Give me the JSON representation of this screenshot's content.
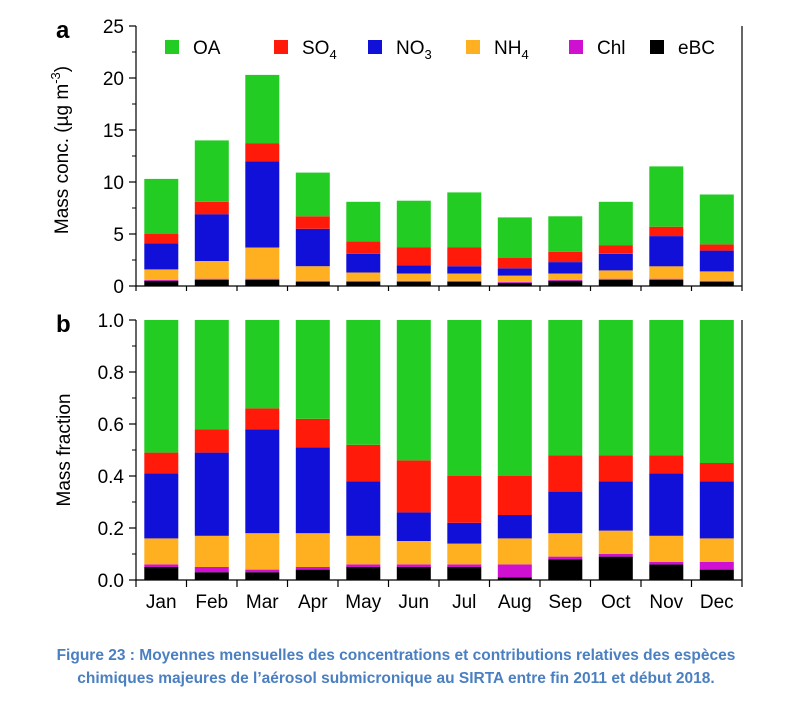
{
  "colors": {
    "OA": "#22cc22",
    "SO4": "#ff1a0a",
    "NO3": "#1010d8",
    "NH4": "#ffb020",
    "Chl": "#d010d0",
    "eBC": "#000000",
    "caption": "#4a7fc1"
  },
  "chart_data": [
    {
      "type": "bar",
      "stacked": true,
      "panel_label": "a",
      "ylabel": "Mass conc. (µg m⁻³)",
      "ylabel_main": "Mass conc. (µg m",
      "ylabel_sup": "-3",
      "ylabel_close": ")",
      "ylim": [
        0,
        25
      ],
      "yticks": [
        0,
        5,
        10,
        15,
        20,
        25
      ],
      "categories": [
        "Jan",
        "Feb",
        "Mar",
        "Apr",
        "May",
        "Jun",
        "Jul",
        "Aug",
        "Sep",
        "Oct",
        "Nov",
        "Dec"
      ],
      "legend": {
        "position": "top",
        "entries": [
          {
            "key": "OA",
            "label": "OA",
            "sub": ""
          },
          {
            "key": "SO4",
            "label": "SO",
            "sub": "4"
          },
          {
            "key": "NO3",
            "label": "NO",
            "sub": "3"
          },
          {
            "key": "NH4",
            "label": "NH",
            "sub": "4"
          },
          {
            "key": "Chl",
            "label": "Chl",
            "sub": ""
          },
          {
            "key": "eBC",
            "label": "eBC",
            "sub": ""
          }
        ]
      },
      "series": [
        {
          "name": "eBC",
          "values": [
            0.5,
            0.6,
            0.6,
            0.4,
            0.4,
            0.4,
            0.4,
            0.3,
            0.5,
            0.6,
            0.6,
            0.4
          ]
        },
        {
          "name": "Chl",
          "values": [
            0.1,
            0.1,
            0.1,
            0.1,
            0.1,
            0.1,
            0.1,
            0.1,
            0.1,
            0.1,
            0.1,
            0.1
          ]
        },
        {
          "name": "NH4",
          "values": [
            1.0,
            1.7,
            3.0,
            1.4,
            0.8,
            0.7,
            0.7,
            0.6,
            0.6,
            0.8,
            1.2,
            0.9
          ]
        },
        {
          "name": "NO3",
          "values": [
            2.5,
            4.5,
            8.3,
            3.6,
            1.8,
            0.8,
            0.7,
            0.7,
            1.1,
            1.6,
            2.9,
            2.0
          ]
        },
        {
          "name": "SO4",
          "values": [
            0.9,
            1.2,
            1.7,
            1.2,
            1.2,
            1.7,
            1.8,
            1.0,
            1.0,
            0.8,
            0.9,
            0.6
          ]
        },
        {
          "name": "OA",
          "values": [
            5.3,
            5.9,
            6.6,
            4.2,
            3.8,
            4.5,
            5.3,
            3.9,
            3.4,
            4.2,
            5.8,
            4.8
          ]
        }
      ]
    },
    {
      "type": "bar",
      "stacked": true,
      "panel_label": "b",
      "ylabel": "Mass fraction",
      "ylim": [
        0,
        1
      ],
      "yticks": [
        "0.0",
        "0.2",
        "0.4",
        "0.6",
        "0.8",
        "1.0"
      ],
      "categories": [
        "Jan",
        "Feb",
        "Mar",
        "Apr",
        "May",
        "Jun",
        "Jul",
        "Aug",
        "Sep",
        "Oct",
        "Nov",
        "Dec"
      ],
      "series": [
        {
          "name": "eBC",
          "values": [
            0.05,
            0.03,
            0.03,
            0.04,
            0.05,
            0.05,
            0.05,
            0.01,
            0.08,
            0.09,
            0.06,
            0.04
          ]
        },
        {
          "name": "Chl",
          "values": [
            0.01,
            0.02,
            0.01,
            0.01,
            0.01,
            0.01,
            0.01,
            0.05,
            0.01,
            0.01,
            0.01,
            0.03
          ]
        },
        {
          "name": "NH4",
          "values": [
            0.1,
            0.12,
            0.14,
            0.13,
            0.11,
            0.09,
            0.08,
            0.1,
            0.09,
            0.09,
            0.1,
            0.09
          ]
        },
        {
          "name": "NO3",
          "values": [
            0.25,
            0.32,
            0.4,
            0.33,
            0.21,
            0.11,
            0.08,
            0.09,
            0.16,
            0.19,
            0.24,
            0.22
          ]
        },
        {
          "name": "SO4",
          "values": [
            0.08,
            0.09,
            0.08,
            0.11,
            0.14,
            0.2,
            0.18,
            0.15,
            0.14,
            0.1,
            0.07,
            0.07
          ]
        },
        {
          "name": "OA",
          "values": [
            0.51,
            0.42,
            0.34,
            0.38,
            0.48,
            0.54,
            0.6,
            0.6,
            0.52,
            0.52,
            0.52,
            0.55
          ]
        }
      ]
    }
  ],
  "caption": {
    "line1": "Figure 23 : Moyennes mensuelles des concentrations et contributions relatives des espèces",
    "line2": "chimiques majeures de l’aérosol submicronique au SIRTA entre fin 2011 et début 2018."
  }
}
